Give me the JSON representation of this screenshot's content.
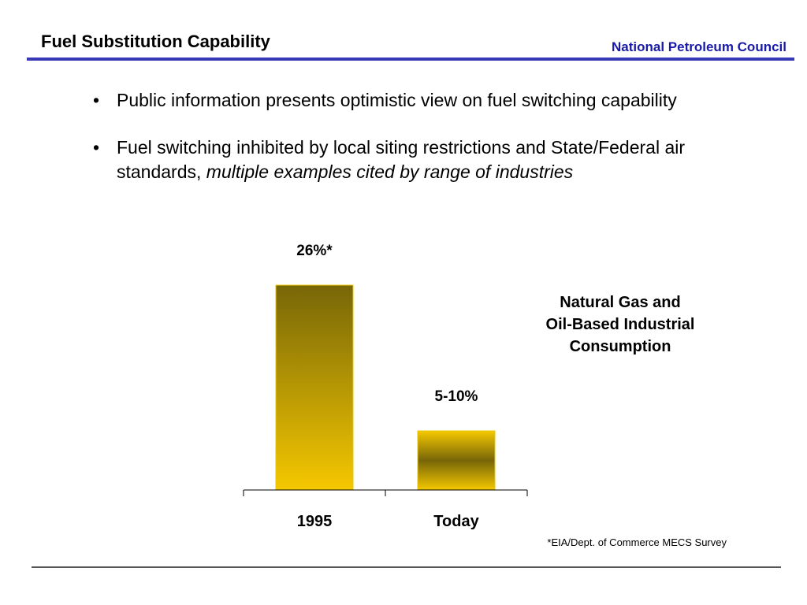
{
  "header": {
    "title": "Fuel Substitution Capability",
    "organization": "National Petroleum Council"
  },
  "bullets": [
    {
      "text": "Public information presents optimistic view on fuel switching capability",
      "emphasis": ""
    },
    {
      "text": "Fuel switching inhibited by local siting restrictions and State/Federal air standards, ",
      "emphasis": "multiple examples cited by range of industries"
    }
  ],
  "chart_data": {
    "type": "bar",
    "categories": [
      "1995",
      "Today"
    ],
    "values": [
      26,
      7.5
    ],
    "data_labels": [
      "26%*",
      "5-10%"
    ],
    "series_label": "Natural Gas and\nOil-Based Industrial\nConsumption",
    "footnote": "*EIA/Dept. of Commerce MECS Survey",
    "grid": false,
    "ylim": [
      0,
      26
    ]
  },
  "colors": {
    "title_text": "#000000",
    "org_text": "#1a1aa8",
    "header_rule": "#3a3ab8",
    "bar_dark": "#776608",
    "bar_light": "#f5c800"
  }
}
